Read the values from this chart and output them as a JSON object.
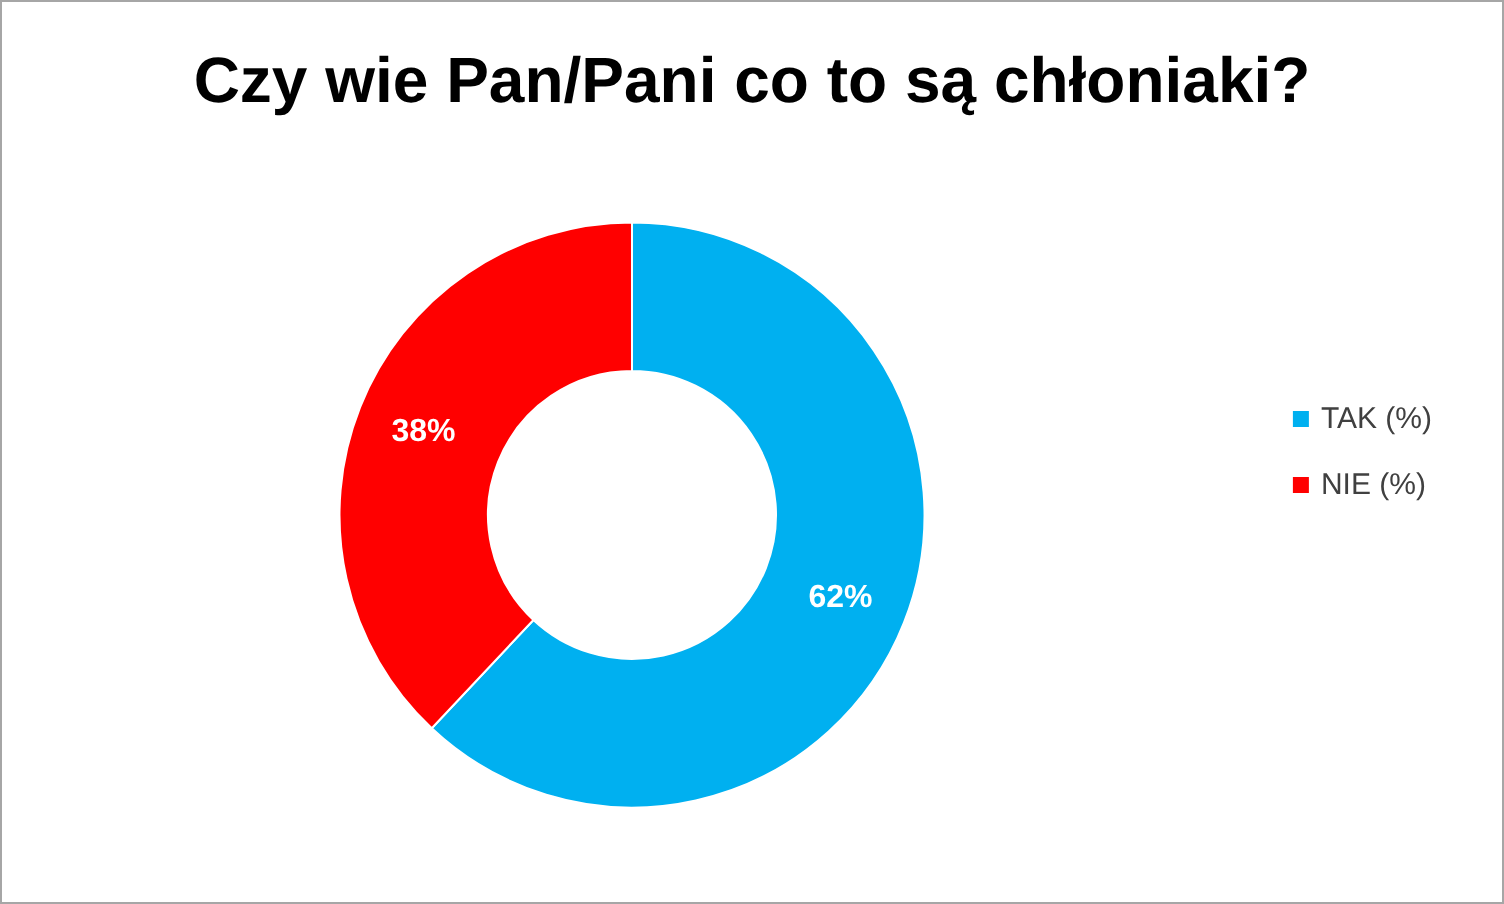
{
  "chart_data": {
    "type": "donut",
    "title": "Czy wie Pan/Pani co to są chłoniaki?",
    "categories": [
      "TAK (%)",
      "NIE (%)"
    ],
    "values": [
      62,
      38
    ],
    "colors": [
      "#00b0f0",
      "#ff0000"
    ],
    "value_labels": [
      "62%",
      "38%"
    ],
    "legend": "right"
  }
}
